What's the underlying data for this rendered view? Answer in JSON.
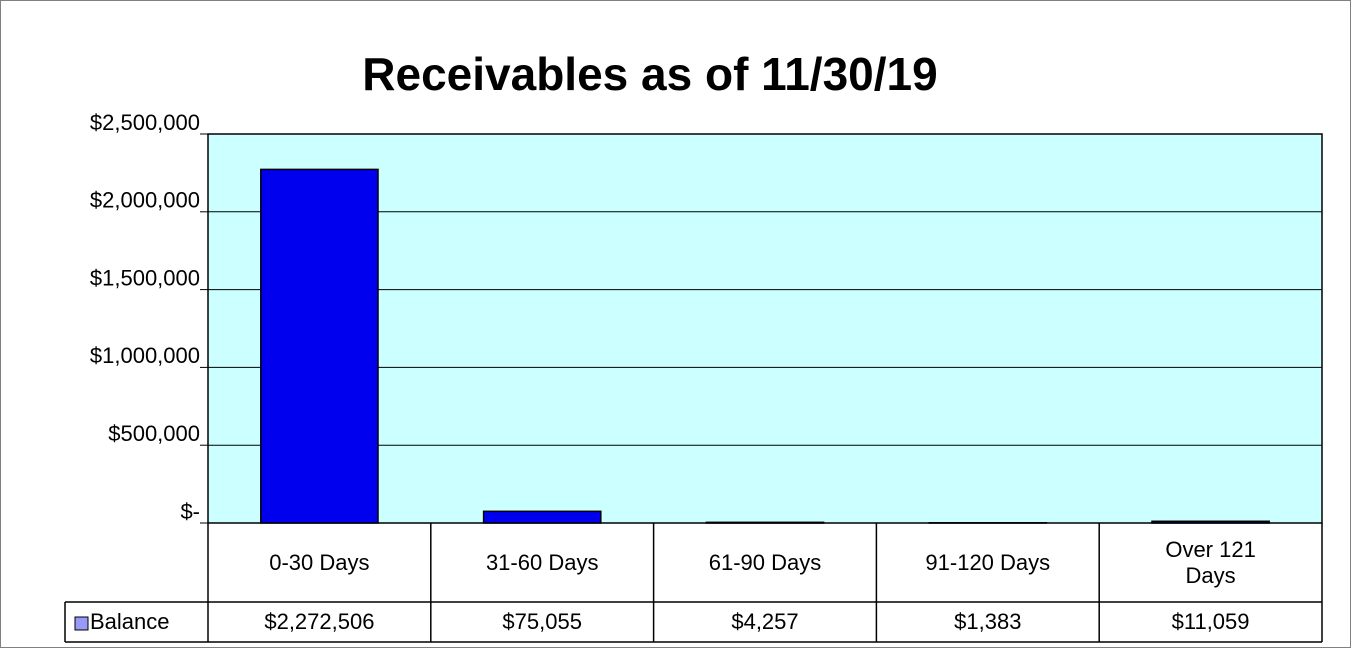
{
  "chart_data": {
    "type": "bar",
    "title": "Receivables as of 11/30/19",
    "categories": [
      "0-30 Days",
      "31-60 Days",
      "61-90 Days",
      "91-120 Days",
      "Over 121 Days"
    ],
    "series": [
      {
        "name": "Balance",
        "color": "#0000ee",
        "values": [
          2272506,
          75055,
          4257,
          1383,
          11059
        ],
        "value_labels": [
          "$2,272,506",
          "$75,055",
          "$4,257",
          "$1,383",
          "$11,059"
        ]
      }
    ],
    "ylim": [
      0,
      2500000
    ],
    "yticks": [
      {
        "value": 0,
        "label": "$-"
      },
      {
        "value": 500000,
        "label": "$500,000"
      },
      {
        "value": 1000000,
        "label": "$1,000,000"
      },
      {
        "value": 1500000,
        "label": "$1,500,000"
      },
      {
        "value": 2000000,
        "label": "$2,000,000"
      },
      {
        "value": 2500000,
        "label": "$2,500,000"
      }
    ],
    "grid": true,
    "plot_background": "#ccffff"
  }
}
